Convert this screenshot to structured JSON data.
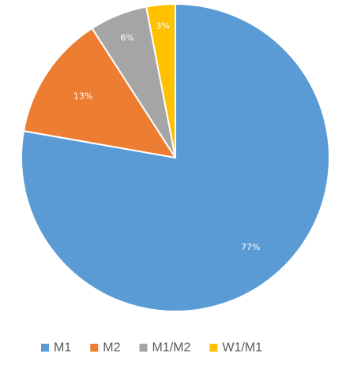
{
  "chart_data": {
    "type": "pie",
    "title": "",
    "start_angle_deg": 0,
    "direction": "clockwise",
    "legend_position": "bottom",
    "categories": [
      "M1",
      "M2",
      "M1/M2",
      "W1/M1"
    ],
    "values": [
      77,
      13,
      6,
      3
    ],
    "data_labels": [
      "77%",
      "13%",
      "6%",
      "3%"
    ],
    "colors": [
      "#5B9BD5",
      "#ED7D31",
      "#A5A5A5",
      "#FFC000"
    ]
  }
}
